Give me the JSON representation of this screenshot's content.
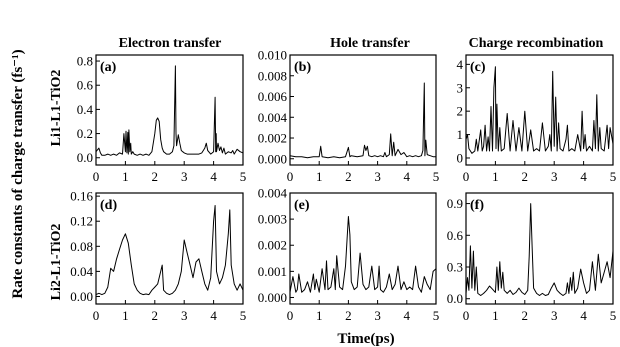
{
  "figure": {
    "y_axis_title": "Rate constants of charge transfer (fs⁻¹)",
    "x_axis_title": "Time(ps)",
    "row_labels": [
      "Li1-L1-TiO2",
      "Li2-L1-TiO2"
    ],
    "column_titles": [
      "Electron transfer",
      "Hole transfer",
      "Charge recombination"
    ],
    "line_color": "#000000"
  },
  "chart_data": [
    {
      "id": "a",
      "panel_label": "(a)",
      "type": "line",
      "row": "Li1-L1-TiO2",
      "column": "Electron transfer",
      "xlim": [
        0,
        5
      ],
      "ylim": [
        -0.06,
        0.85
      ],
      "xticks": [
        "0",
        "1",
        "2",
        "3",
        "4",
        "5"
      ],
      "yticks": [
        "0.0",
        "0.2",
        "0.4",
        "0.6",
        "0.8"
      ],
      "ytick_values": [
        0,
        0.2,
        0.4,
        0.6,
        0.8
      ],
      "x": [
        0.0,
        0.1,
        0.15,
        0.2,
        0.3,
        0.4,
        0.5,
        0.6,
        0.7,
        0.8,
        0.9,
        0.95,
        1.0,
        1.02,
        1.05,
        1.08,
        1.1,
        1.12,
        1.15,
        1.18,
        1.2,
        1.25,
        1.3,
        1.4,
        1.5,
        1.6,
        1.7,
        1.8,
        1.9,
        2.0,
        2.05,
        2.1,
        2.15,
        2.2,
        2.25,
        2.3,
        2.4,
        2.5,
        2.6,
        2.65,
        2.7,
        2.72,
        2.74,
        2.8,
        2.85,
        2.9,
        2.95,
        3.0,
        3.1,
        3.2,
        3.3,
        3.4,
        3.5,
        3.6,
        3.7,
        3.75,
        3.8,
        3.9,
        4.0,
        4.05,
        4.07,
        4.09,
        4.1,
        4.15,
        4.2,
        4.25,
        4.3,
        4.35,
        4.4,
        4.5,
        4.6,
        4.65,
        4.7,
        4.8,
        4.9,
        5.0
      ],
      "y": [
        0.05,
        0.08,
        0.04,
        0.02,
        0.02,
        0.03,
        0.02,
        0.03,
        0.02,
        0.04,
        0.03,
        0.2,
        0.05,
        0.22,
        0.04,
        0.21,
        0.03,
        0.23,
        0.05,
        0.12,
        0.03,
        0.05,
        0.03,
        0.02,
        0.03,
        0.02,
        0.03,
        0.02,
        0.05,
        0.2,
        0.31,
        0.33,
        0.3,
        0.15,
        0.08,
        0.05,
        0.03,
        0.03,
        0.05,
        0.1,
        0.76,
        0.2,
        0.1,
        0.19,
        0.12,
        0.06,
        0.05,
        0.04,
        0.03,
        0.03,
        0.03,
        0.03,
        0.03,
        0.04,
        0.08,
        0.12,
        0.06,
        0.03,
        0.05,
        0.5,
        0.05,
        0.2,
        0.05,
        0.12,
        0.06,
        0.09,
        0.04,
        0.08,
        0.03,
        0.05,
        0.04,
        0.06,
        0.03,
        0.07,
        0.05,
        0.04
      ]
    },
    {
      "id": "b",
      "panel_label": "(b)",
      "type": "line",
      "row": "Li1-L1-TiO2",
      "column": "Hole transfer",
      "xlim": [
        0,
        5
      ],
      "ylim": [
        -0.0006,
        0.01
      ],
      "xticks": [
        "0",
        "1",
        "2",
        "3",
        "4",
        "5"
      ],
      "yticks": [
        "0.000",
        "0.002",
        "0.004",
        "0.006",
        "0.008",
        "0.010"
      ],
      "ytick_values": [
        0,
        0.002,
        0.004,
        0.006,
        0.008,
        0.01
      ],
      "x": [
        0.0,
        0.2,
        0.4,
        0.6,
        0.8,
        1.0,
        1.05,
        1.1,
        1.3,
        1.5,
        1.7,
        1.9,
        2.0,
        2.05,
        2.1,
        2.3,
        2.5,
        2.55,
        2.6,
        2.65,
        2.7,
        2.8,
        2.9,
        3.0,
        3.1,
        3.2,
        3.25,
        3.3,
        3.4,
        3.45,
        3.5,
        3.55,
        3.6,
        3.7,
        3.8,
        3.9,
        4.0,
        4.1,
        4.2,
        4.3,
        4.4,
        4.5,
        4.55,
        4.6,
        4.62,
        4.65,
        4.7,
        4.8,
        4.9,
        5.0
      ],
      "y": [
        0.0003,
        0.0002,
        0.0002,
        0.0001,
        0.0002,
        0.0002,
        0.0012,
        0.0002,
        0.0001,
        0.0002,
        0.0001,
        0.0002,
        0.0011,
        0.0002,
        0.0003,
        0.0002,
        0.0003,
        0.0013,
        0.0008,
        0.0012,
        0.0003,
        0.0002,
        0.0003,
        0.0002,
        0.0003,
        0.0002,
        0.0006,
        0.0002,
        0.0004,
        0.0024,
        0.0003,
        0.0016,
        0.0003,
        0.0009,
        0.0004,
        0.0006,
        0.0002,
        0.0003,
        0.0002,
        0.0003,
        0.0002,
        0.0003,
        0.0008,
        0.0073,
        0.0003,
        0.0018,
        0.0004,
        0.0003,
        0.0002,
        0.0002
      ]
    },
    {
      "id": "c",
      "panel_label": "(c)",
      "type": "line",
      "row": "Li1-L1-TiO2",
      "column": "Charge recombination",
      "xlim": [
        0,
        5
      ],
      "ylim": [
        -0.3,
        4.4
      ],
      "xticks": [
        "0",
        "1",
        "2",
        "3",
        "4",
        "5"
      ],
      "yticks": [
        "0",
        "1",
        "2",
        "3",
        "4"
      ],
      "ytick_values": [
        0,
        1,
        2,
        3,
        4
      ],
      "x": [
        0.0,
        0.05,
        0.1,
        0.2,
        0.3,
        0.35,
        0.4,
        0.5,
        0.55,
        0.6,
        0.65,
        0.7,
        0.75,
        0.8,
        0.85,
        0.9,
        0.95,
        1.0,
        1.02,
        1.05,
        1.1,
        1.15,
        1.2,
        1.3,
        1.4,
        1.5,
        1.6,
        1.7,
        1.8,
        1.9,
        2.0,
        2.1,
        2.2,
        2.3,
        2.4,
        2.5,
        2.6,
        2.7,
        2.8,
        2.85,
        2.9,
        2.95,
        3.0,
        3.05,
        3.1,
        3.15,
        3.2,
        3.3,
        3.4,
        3.45,
        3.5,
        3.6,
        3.7,
        3.8,
        3.9,
        3.95,
        4.0,
        4.05,
        4.1,
        4.2,
        4.3,
        4.35,
        4.4,
        4.45,
        4.5,
        4.55,
        4.6,
        4.7,
        4.8,
        4.85,
        4.9,
        5.0
      ],
      "y": [
        0.8,
        1.0,
        0.4,
        0.2,
        0.3,
        0.8,
        0.3,
        1.2,
        0.3,
        0.5,
        1.4,
        0.3,
        0.9,
        0.3,
        2.2,
        0.3,
        3.0,
        3.9,
        0.4,
        2.3,
        0.3,
        1.3,
        0.3,
        0.4,
        1.9,
        0.3,
        1.6,
        0.3,
        1.3,
        0.3,
        2.0,
        0.3,
        1.2,
        0.3,
        0.4,
        0.3,
        1.5,
        0.3,
        0.5,
        1.0,
        0.3,
        3.7,
        0.5,
        2.6,
        0.3,
        1.5,
        0.4,
        0.3,
        0.8,
        1.4,
        0.3,
        0.4,
        0.3,
        1.0,
        0.3,
        2.0,
        0.4,
        1.0,
        0.3,
        0.5,
        0.3,
        1.6,
        0.4,
        2.7,
        0.3,
        1.3,
        0.4,
        0.3,
        1.4,
        0.4,
        1.3,
        0.6
      ]
    },
    {
      "id": "d",
      "panel_label": "(d)",
      "type": "line",
      "row": "Li2-L1-TiO2",
      "column": "Electron transfer",
      "xlim": [
        0,
        5
      ],
      "ylim": [
        -0.012,
        0.165
      ],
      "xticks": [
        "0",
        "1",
        "2",
        "3",
        "4",
        "5"
      ],
      "yticks": [
        "0.00",
        "0.04",
        "0.08",
        "0.12",
        "0.16"
      ],
      "ytick_values": [
        0,
        0.04,
        0.08,
        0.12,
        0.16
      ],
      "x": [
        0.0,
        0.1,
        0.2,
        0.3,
        0.4,
        0.5,
        0.6,
        0.7,
        0.8,
        0.9,
        1.0,
        1.1,
        1.2,
        1.3,
        1.4,
        1.5,
        1.6,
        1.7,
        1.8,
        1.9,
        2.0,
        2.1,
        2.2,
        2.25,
        2.3,
        2.4,
        2.5,
        2.6,
        2.7,
        2.8,
        2.9,
        3.0,
        3.1,
        3.2,
        3.3,
        3.4,
        3.5,
        3.6,
        3.7,
        3.8,
        3.9,
        4.0,
        4.05,
        4.1,
        4.2,
        4.3,
        4.4,
        4.5,
        4.55,
        4.6,
        4.7,
        4.8,
        4.9,
        5.0
      ],
      "y": [
        0.003,
        0.005,
        0.003,
        0.005,
        0.015,
        0.045,
        0.04,
        0.06,
        0.075,
        0.09,
        0.1,
        0.085,
        0.05,
        0.02,
        0.01,
        0.005,
        0.003,
        0.004,
        0.003,
        0.01,
        0.015,
        0.02,
        0.04,
        0.05,
        0.01,
        0.005,
        0.003,
        0.005,
        0.01,
        0.02,
        0.04,
        0.09,
        0.07,
        0.05,
        0.03,
        0.055,
        0.06,
        0.04,
        0.02,
        0.01,
        0.03,
        0.12,
        0.145,
        0.04,
        0.02,
        0.03,
        0.05,
        0.1,
        0.138,
        0.05,
        0.02,
        0.01,
        0.02,
        0.01
      ]
    },
    {
      "id": "e",
      "panel_label": "(e)",
      "type": "line",
      "row": "Li2-L1-TiO2",
      "column": "Hole transfer",
      "xlim": [
        0,
        5
      ],
      "ylim": [
        -0.00025,
        0.004
      ],
      "xticks": [
        "0",
        "1",
        "2",
        "3",
        "4",
        "5"
      ],
      "yticks": [
        "0.000",
        "0.001",
        "0.002",
        "0.003",
        "0.004"
      ],
      "ytick_values": [
        0,
        0.001,
        0.002,
        0.003,
        0.004
      ],
      "x": [
        0.0,
        0.1,
        0.2,
        0.25,
        0.3,
        0.4,
        0.5,
        0.6,
        0.7,
        0.8,
        0.85,
        0.9,
        1.0,
        1.1,
        1.2,
        1.25,
        1.3,
        1.4,
        1.5,
        1.55,
        1.6,
        1.7,
        1.8,
        1.9,
        2.0,
        2.05,
        2.1,
        2.2,
        2.3,
        2.4,
        2.5,
        2.6,
        2.7,
        2.8,
        2.9,
        3.0,
        3.05,
        3.1,
        3.2,
        3.3,
        3.4,
        3.5,
        3.6,
        3.7,
        3.8,
        3.9,
        4.0,
        4.1,
        4.2,
        4.3,
        4.4,
        4.5,
        4.6,
        4.7,
        4.8,
        4.9,
        5.0
      ],
      "y": [
        0.0002,
        0.0008,
        0.0002,
        0.0003,
        0.0009,
        0.0002,
        0.0003,
        0.0006,
        0.0002,
        0.0009,
        0.0003,
        0.0007,
        0.0002,
        0.0011,
        0.0003,
        0.0014,
        0.0003,
        0.0004,
        0.0011,
        0.0003,
        0.0016,
        0.0004,
        0.0003,
        0.0012,
        0.0031,
        0.0024,
        0.0006,
        0.0003,
        0.0004,
        0.0017,
        0.0005,
        0.0003,
        0.0004,
        0.0012,
        0.0003,
        0.0004,
        0.0012,
        0.0003,
        0.0002,
        0.0004,
        0.0009,
        0.0003,
        0.0005,
        0.0012,
        0.0003,
        0.0006,
        0.0003,
        0.0004,
        0.0003,
        0.0012,
        0.0004,
        0.0002,
        0.0008,
        0.0005,
        0.0003,
        0.001,
        0.0011
      ]
    },
    {
      "id": "f",
      "panel_label": "(f)",
      "type": "line",
      "row": "Li2-L1-TiO2",
      "column": "Charge recombination",
      "xlim": [
        0,
        5
      ],
      "ylim": [
        -0.05,
        1.0
      ],
      "xticks": [
        "0",
        "1",
        "2",
        "3",
        "4",
        "5"
      ],
      "yticks": [
        "0.0",
        "0.3",
        "0.6",
        "0.9"
      ],
      "ytick_values": [
        0,
        0.3,
        0.6,
        0.9
      ],
      "x": [
        0.0,
        0.05,
        0.1,
        0.15,
        0.2,
        0.25,
        0.3,
        0.35,
        0.4,
        0.5,
        0.6,
        0.7,
        0.8,
        0.9,
        1.0,
        1.05,
        1.1,
        1.15,
        1.2,
        1.25,
        1.3,
        1.4,
        1.5,
        1.6,
        1.7,
        1.8,
        1.9,
        2.0,
        2.1,
        2.15,
        2.2,
        2.25,
        2.3,
        2.4,
        2.5,
        2.6,
        2.7,
        2.8,
        2.9,
        3.0,
        3.1,
        3.2,
        3.3,
        3.4,
        3.45,
        3.5,
        3.55,
        3.6,
        3.65,
        3.7,
        3.8,
        3.9,
        4.0,
        4.1,
        4.2,
        4.3,
        4.4,
        4.5,
        4.6,
        4.7,
        4.8,
        4.9,
        5.0
      ],
      "y": [
        0.05,
        0.2,
        0.08,
        0.5,
        0.1,
        0.45,
        0.08,
        0.3,
        0.05,
        0.03,
        0.05,
        0.08,
        0.12,
        0.09,
        0.06,
        0.3,
        0.08,
        0.35,
        0.1,
        0.25,
        0.08,
        0.05,
        0.08,
        0.04,
        0.06,
        0.1,
        0.06,
        0.04,
        0.08,
        0.4,
        0.9,
        0.5,
        0.1,
        0.05,
        0.03,
        0.05,
        0.03,
        0.04,
        0.1,
        0.15,
        0.08,
        0.05,
        0.03,
        0.05,
        0.15,
        0.05,
        0.2,
        0.08,
        0.25,
        0.05,
        0.1,
        0.28,
        0.15,
        0.05,
        0.08,
        0.35,
        0.08,
        0.42,
        0.15,
        0.25,
        0.35,
        0.2,
        0.45
      ]
    }
  ]
}
